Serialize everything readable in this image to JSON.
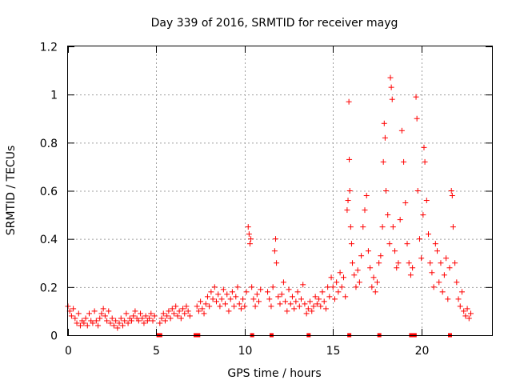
{
  "chart_data": {
    "type": "scatter",
    "title": "Day 339 of 2016, SRMTID for receiver mayg",
    "xlabel": "GPS time / hours",
    "ylabel": "SRMTID / TECUs",
    "xlim": [
      0,
      24
    ],
    "ylim": [
      0,
      1.2
    ],
    "xticks": [
      0,
      5,
      10,
      15,
      20
    ],
    "yticks": [
      0,
      0.2,
      0.4,
      0.6,
      0.8,
      1,
      1.2
    ],
    "ytick_labels": [
      "0",
      "0.2",
      "0.4",
      "0.6",
      "0.8",
      "1",
      "1.2"
    ],
    "xtick_labels": [
      "0",
      "5",
      "10",
      "15",
      "20"
    ],
    "marker": "+",
    "color": "#ff0000",
    "grid": true,
    "series": [
      {
        "name": "SRMTID",
        "points": [
          [
            0.0,
            0.12
          ],
          [
            0.1,
            0.1
          ],
          [
            0.2,
            0.08
          ],
          [
            0.3,
            0.11
          ],
          [
            0.4,
            0.07
          ],
          [
            0.5,
            0.05
          ],
          [
            0.6,
            0.09
          ],
          [
            0.7,
            0.04
          ],
          [
            0.8,
            0.06
          ],
          [
            0.9,
            0.05
          ],
          [
            1.0,
            0.07
          ],
          [
            1.1,
            0.04
          ],
          [
            1.2,
            0.09
          ],
          [
            1.3,
            0.06
          ],
          [
            1.4,
            0.05
          ],
          [
            1.5,
            0.1
          ],
          [
            1.6,
            0.06
          ],
          [
            1.7,
            0.04
          ],
          [
            1.8,
            0.07
          ],
          [
            1.9,
            0.09
          ],
          [
            2.0,
            0.11
          ],
          [
            2.1,
            0.08
          ],
          [
            2.2,
            0.06
          ],
          [
            2.3,
            0.1
          ],
          [
            2.4,
            0.05
          ],
          [
            2.5,
            0.07
          ],
          [
            2.6,
            0.04
          ],
          [
            2.7,
            0.06
          ],
          [
            2.8,
            0.03
          ],
          [
            2.9,
            0.05
          ],
          [
            3.0,
            0.07
          ],
          [
            3.1,
            0.04
          ],
          [
            3.2,
            0.06
          ],
          [
            3.3,
            0.09
          ],
          [
            3.4,
            0.05
          ],
          [
            3.5,
            0.07
          ],
          [
            3.6,
            0.06
          ],
          [
            3.7,
            0.08
          ],
          [
            3.8,
            0.1
          ],
          [
            3.9,
            0.07
          ],
          [
            4.0,
            0.06
          ],
          [
            4.1,
            0.09
          ],
          [
            4.2,
            0.07
          ],
          [
            4.3,
            0.05
          ],
          [
            4.4,
            0.08
          ],
          [
            4.5,
            0.06
          ],
          [
            4.6,
            0.07
          ],
          [
            4.7,
            0.09
          ],
          [
            4.8,
            0.06
          ],
          [
            4.9,
            0.08
          ],
          [
            5.2,
            0.05
          ],
          [
            5.3,
            0.07
          ],
          [
            5.4,
            0.09
          ],
          [
            5.5,
            0.06
          ],
          [
            5.6,
            0.08
          ],
          [
            5.7,
            0.1
          ],
          [
            5.8,
            0.07
          ],
          [
            5.9,
            0.11
          ],
          [
            6.0,
            0.09
          ],
          [
            6.1,
            0.12
          ],
          [
            6.2,
            0.08
          ],
          [
            6.3,
            0.1
          ],
          [
            6.4,
            0.07
          ],
          [
            6.5,
            0.11
          ],
          [
            6.6,
            0.09
          ],
          [
            6.7,
            0.12
          ],
          [
            6.8,
            0.1
          ],
          [
            6.9,
            0.08
          ],
          [
            7.3,
            0.12
          ],
          [
            7.4,
            0.1
          ],
          [
            7.5,
            0.14
          ],
          [
            7.6,
            0.11
          ],
          [
            7.7,
            0.09
          ],
          [
            7.8,
            0.13
          ],
          [
            7.9,
            0.16
          ],
          [
            8.0,
            0.12
          ],
          [
            8.1,
            0.18
          ],
          [
            8.2,
            0.15
          ],
          [
            8.3,
            0.2
          ],
          [
            8.4,
            0.14
          ],
          [
            8.5,
            0.17
          ],
          [
            8.6,
            0.12
          ],
          [
            8.7,
            0.15
          ],
          [
            8.8,
            0.19
          ],
          [
            8.9,
            0.13
          ],
          [
            9.0,
            0.17
          ],
          [
            9.1,
            0.1
          ],
          [
            9.2,
            0.15
          ],
          [
            9.3,
            0.18
          ],
          [
            9.4,
            0.12
          ],
          [
            9.5,
            0.16
          ],
          [
            9.6,
            0.2
          ],
          [
            9.7,
            0.13
          ],
          [
            9.8,
            0.11
          ],
          [
            9.9,
            0.15
          ],
          [
            10.0,
            0.12
          ],
          [
            10.1,
            0.18
          ],
          [
            10.2,
            0.45
          ],
          [
            10.25,
            0.42
          ],
          [
            10.3,
            0.38
          ],
          [
            10.35,
            0.4
          ],
          [
            10.4,
            0.2
          ],
          [
            10.5,
            0.15
          ],
          [
            10.6,
            0.12
          ],
          [
            10.7,
            0.17
          ],
          [
            10.8,
            0.14
          ],
          [
            10.9,
            0.19
          ],
          [
            11.3,
            0.18
          ],
          [
            11.4,
            0.15
          ],
          [
            11.5,
            0.12
          ],
          [
            11.6,
            0.2
          ],
          [
            11.7,
            0.35
          ],
          [
            11.75,
            0.4
          ],
          [
            11.8,
            0.3
          ],
          [
            11.9,
            0.16
          ],
          [
            12.0,
            0.13
          ],
          [
            12.1,
            0.17
          ],
          [
            12.2,
            0.22
          ],
          [
            12.3,
            0.14
          ],
          [
            12.4,
            0.1
          ],
          [
            12.5,
            0.19
          ],
          [
            12.6,
            0.13
          ],
          [
            12.7,
            0.16
          ],
          [
            12.8,
            0.11
          ],
          [
            12.9,
            0.14
          ],
          [
            13.0,
            0.18
          ],
          [
            13.1,
            0.12
          ],
          [
            13.2,
            0.15
          ],
          [
            13.3,
            0.21
          ],
          [
            13.4,
            0.13
          ],
          [
            13.5,
            0.09
          ],
          [
            13.6,
            0.11
          ],
          [
            13.7,
            0.14
          ],
          [
            13.8,
            0.1
          ],
          [
            13.9,
            0.12
          ],
          [
            14.0,
            0.16
          ],
          [
            14.1,
            0.13
          ],
          [
            14.2,
            0.15
          ],
          [
            14.3,
            0.12
          ],
          [
            14.4,
            0.18
          ],
          [
            14.5,
            0.14
          ],
          [
            14.6,
            0.11
          ],
          [
            14.7,
            0.2
          ],
          [
            14.8,
            0.16
          ],
          [
            14.9,
            0.24
          ],
          [
            15.0,
            0.2
          ],
          [
            15.1,
            0.15
          ],
          [
            15.2,
            0.22
          ],
          [
            15.3,
            0.18
          ],
          [
            15.4,
            0.26
          ],
          [
            15.5,
            0.2
          ],
          [
            15.6,
            0.24
          ],
          [
            15.7,
            0.16
          ],
          [
            15.8,
            0.52
          ],
          [
            15.85,
            0.56
          ],
          [
            15.9,
            0.97
          ],
          [
            15.92,
            0.73
          ],
          [
            15.95,
            0.6
          ],
          [
            16.0,
            0.45
          ],
          [
            16.05,
            0.38
          ],
          [
            16.1,
            0.3
          ],
          [
            16.2,
            0.25
          ],
          [
            16.3,
            0.2
          ],
          [
            16.4,
            0.27
          ],
          [
            16.5,
            0.22
          ],
          [
            16.6,
            0.33
          ],
          [
            16.7,
            0.45
          ],
          [
            16.8,
            0.52
          ],
          [
            16.9,
            0.58
          ],
          [
            17.0,
            0.35
          ],
          [
            17.1,
            0.28
          ],
          [
            17.2,
            0.2
          ],
          [
            17.3,
            0.24
          ],
          [
            17.4,
            0.18
          ],
          [
            17.5,
            0.22
          ],
          [
            17.6,
            0.3
          ],
          [
            17.7,
            0.33
          ],
          [
            17.8,
            0.45
          ],
          [
            17.85,
            0.72
          ],
          [
            17.9,
            0.88
          ],
          [
            17.95,
            0.82
          ],
          [
            18.0,
            0.6
          ],
          [
            18.1,
            0.5
          ],
          [
            18.2,
            0.38
          ],
          [
            18.25,
            1.07
          ],
          [
            18.3,
            1.03
          ],
          [
            18.35,
            0.98
          ],
          [
            18.4,
            0.45
          ],
          [
            18.5,
            0.35
          ],
          [
            18.6,
            0.28
          ],
          [
            18.7,
            0.3
          ],
          [
            18.8,
            0.48
          ],
          [
            18.9,
            0.85
          ],
          [
            19.0,
            0.72
          ],
          [
            19.1,
            0.55
          ],
          [
            19.2,
            0.38
          ],
          [
            19.3,
            0.3
          ],
          [
            19.4,
            0.25
          ],
          [
            19.5,
            0.28
          ],
          [
            19.7,
            0.99
          ],
          [
            19.75,
            0.9
          ],
          [
            19.8,
            0.6
          ],
          [
            19.9,
            0.4
          ],
          [
            20.0,
            0.32
          ],
          [
            20.1,
            0.5
          ],
          [
            20.15,
            0.78
          ],
          [
            20.2,
            0.72
          ],
          [
            20.3,
            0.56
          ],
          [
            20.4,
            0.42
          ],
          [
            20.5,
            0.3
          ],
          [
            20.6,
            0.26
          ],
          [
            20.7,
            0.2
          ],
          [
            20.8,
            0.38
          ],
          [
            20.9,
            0.35
          ],
          [
            21.0,
            0.22
          ],
          [
            21.1,
            0.3
          ],
          [
            21.2,
            0.18
          ],
          [
            21.3,
            0.25
          ],
          [
            21.4,
            0.32
          ],
          [
            21.5,
            0.15
          ],
          [
            21.6,
            0.28
          ],
          [
            21.7,
            0.6
          ],
          [
            21.75,
            0.58
          ],
          [
            21.8,
            0.45
          ],
          [
            21.9,
            0.3
          ],
          [
            22.0,
            0.22
          ],
          [
            22.1,
            0.15
          ],
          [
            22.2,
            0.12
          ],
          [
            22.3,
            0.18
          ],
          [
            22.4,
            0.1
          ],
          [
            22.5,
            0.08
          ],
          [
            22.6,
            0.11
          ],
          [
            22.7,
            0.07
          ],
          [
            22.8,
            0.09
          ]
        ]
      }
    ],
    "gap_markers_x": [
      5.1,
      5.2,
      7.2,
      7.35,
      10.4,
      11.5,
      13.6,
      15.9,
      17.6,
      19.4,
      19.6,
      21.6
    ]
  }
}
